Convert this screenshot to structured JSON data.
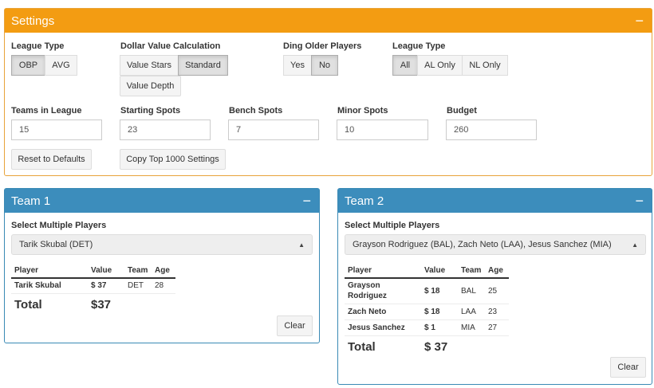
{
  "settings": {
    "title": "Settings",
    "collapse": "−",
    "league_type": {
      "label": "League Type",
      "options": [
        "OBP",
        "AVG"
      ],
      "active": "OBP"
    },
    "dollar_value": {
      "label": "Dollar Value Calculation",
      "options": [
        "Value Stars",
        "Standard",
        "Value Depth"
      ],
      "active": "Standard"
    },
    "ding_older": {
      "label": "Ding Older Players",
      "options": [
        "Yes",
        "No"
      ],
      "active": "No"
    },
    "league_scope": {
      "label": "League Type",
      "options": [
        "All",
        "AL Only",
        "NL Only"
      ],
      "active": "All"
    },
    "teams_in_league": {
      "label": "Teams in League",
      "value": "15"
    },
    "starting_spots": {
      "label": "Starting Spots",
      "value": "23"
    },
    "bench_spots": {
      "label": "Bench Spots",
      "value": "7"
    },
    "minor_spots": {
      "label": "Minor Spots",
      "value": "10"
    },
    "budget": {
      "label": "Budget",
      "value": "260"
    },
    "reset_label": "Reset to Defaults",
    "copy_label": "Copy Top 1000 Settings"
  },
  "teams": [
    {
      "title": "Team 1",
      "collapse": "−",
      "select_label": "Select Multiple Players",
      "selected": "Tarik Skubal (DET)",
      "columns": [
        "Player",
        "Value",
        "Team",
        "Age"
      ],
      "rows": [
        {
          "player": "Tarik Skubal",
          "value": "$ 37",
          "team": "DET",
          "age": "28"
        }
      ],
      "total_label": "Total",
      "total_value": "$37",
      "clear_label": "Clear"
    },
    {
      "title": "Team 2",
      "collapse": "−",
      "select_label": "Select Multiple Players",
      "selected": "Grayson Rodriguez (BAL), Zach Neto (LAA), Jesus Sanchez (MIA)",
      "columns": [
        "Player",
        "Value",
        "Team",
        "Age"
      ],
      "rows": [
        {
          "player": "Grayson Rodriguez",
          "value": "$ 18",
          "team": "BAL",
          "age": "25"
        },
        {
          "player": "Zach Neto",
          "value": "$ 18",
          "team": "LAA",
          "age": "23"
        },
        {
          "player": "Jesus Sanchez",
          "value": "$ 1",
          "team": "MIA",
          "age": "27"
        }
      ],
      "total_label": "Total",
      "total_value": "$ 37",
      "clear_label": "Clear"
    }
  ]
}
